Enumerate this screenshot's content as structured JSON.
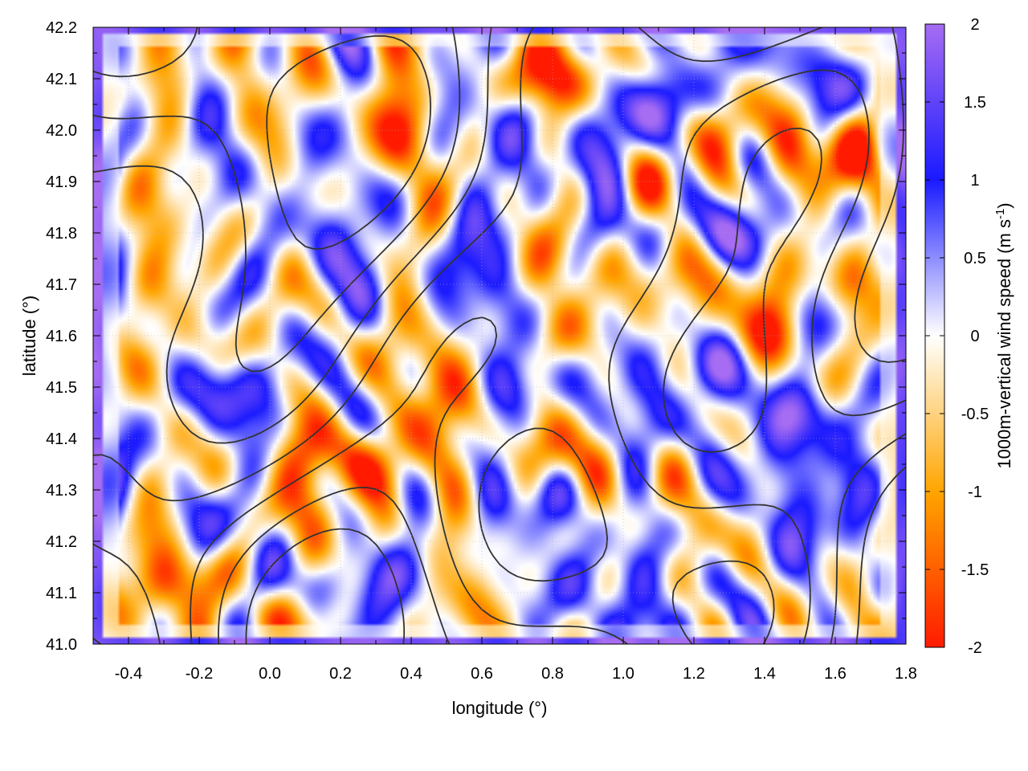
{
  "chart_data": {
    "type": "heatmap",
    "xlabel": "longitude (°)",
    "ylabel": "latitude (°)",
    "colorbar_label": "1000m-vertical wind speed (m s",
    "colorbar_label_sup": "-1",
    "colorbar_label_end": ")",
    "xlim": [
      -0.5,
      1.8
    ],
    "ylim": [
      41.0,
      42.2
    ],
    "x_ticks": [
      -0.4,
      -0.2,
      0.0,
      0.2,
      0.4,
      0.6,
      0.8,
      1.0,
      1.2,
      1.4,
      1.6,
      1.8
    ],
    "x_tick_labels": [
      "-0.4",
      "-0.2",
      "0.0",
      "0.2",
      "0.4",
      "0.6",
      "0.8",
      "1.0",
      "1.2",
      "1.4",
      "1.6",
      "1.8"
    ],
    "y_ticks": [
      41.0,
      41.1,
      41.2,
      41.3,
      41.4,
      41.5,
      41.6,
      41.7,
      41.8,
      41.9,
      42.0,
      42.1,
      42.2
    ],
    "y_tick_labels": [
      "41.0",
      "41.1",
      "41.2",
      "41.3",
      "41.4",
      "41.5",
      "41.6",
      "41.7",
      "41.8",
      "41.9",
      "42.0",
      "42.1",
      "42.2"
    ],
    "colorbar": {
      "range": [
        -2,
        2
      ],
      "ticks": [
        2,
        1.5,
        1,
        0.5,
        0,
        -0.5,
        -1,
        -1.5,
        -2
      ],
      "tick_labels": [
        "2",
        "1.5",
        "1",
        "0.5",
        "0",
        "-0.5",
        "-1",
        "-1.5",
        "-2"
      ],
      "stops": [
        {
          "value": 2,
          "color": "#a66cf2"
        },
        {
          "value": 1,
          "color": "#1a1aff"
        },
        {
          "value": 0,
          "color": "#ffffff"
        },
        {
          "value": -1,
          "color": "#ffa500"
        },
        {
          "value": -2,
          "color": "#ff1a00"
        }
      ]
    },
    "grid": true,
    "contour_color": "#333333",
    "hotspots": [
      {
        "x": 0.85,
        "y": 42.1,
        "v": -1.8
      },
      {
        "x": 0.75,
        "y": 42.1,
        "v": -1.6
      },
      {
        "x": 1.1,
        "y": 41.9,
        "v": -1.2
      },
      {
        "x": 1.3,
        "y": 42.0,
        "v": -1.0
      },
      {
        "x": 1.6,
        "y": 41.95,
        "v": -1.2
      },
      {
        "x": 1.65,
        "y": 41.7,
        "v": -1.3
      },
      {
        "x": 1.4,
        "y": 41.6,
        "v": -1.2
      },
      {
        "x": 1.35,
        "y": 41.72,
        "v": -1.5
      },
      {
        "x": 0.85,
        "y": 41.75,
        "v": -0.8
      },
      {
        "x": 0.9,
        "y": 41.6,
        "v": -0.6
      },
      {
        "x": -0.4,
        "y": 41.55,
        "v": -1.2
      },
      {
        "x": -0.1,
        "y": 41.58,
        "v": -1.0
      },
      {
        "x": 0.12,
        "y": 41.38,
        "v": -1.6
      },
      {
        "x": 0.3,
        "y": 41.34,
        "v": -1.2
      },
      {
        "x": -0.3,
        "y": 41.12,
        "v": -1.6
      },
      {
        "x": -0.4,
        "y": 41.2,
        "v": -1.0
      },
      {
        "x": 0.08,
        "y": 41.05,
        "v": -1.8
      },
      {
        "x": 0.85,
        "y": 41.35,
        "v": -1.5
      },
      {
        "x": 0.6,
        "y": 41.2,
        "v": -0.7
      },
      {
        "x": 1.1,
        "y": 42.05,
        "v": 1.8
      },
      {
        "x": 1.3,
        "y": 41.8,
        "v": 1.8
      },
      {
        "x": 1.25,
        "y": 41.55,
        "v": 1.6
      },
      {
        "x": 0.95,
        "y": 41.8,
        "v": 1.2
      },
      {
        "x": 0.6,
        "y": 41.7,
        "v": 0.6
      },
      {
        "x": -0.2,
        "y": 41.5,
        "v": 1.0
      },
      {
        "x": 0.0,
        "y": 41.75,
        "v": 0.4
      },
      {
        "x": -0.15,
        "y": 41.22,
        "v": 1.1
      },
      {
        "x": 0.15,
        "y": 41.1,
        "v": 1.7
      },
      {
        "x": 0.35,
        "y": 41.15,
        "v": 1.2
      },
      {
        "x": 0.75,
        "y": 41.3,
        "v": 1.2
      },
      {
        "x": 0.7,
        "y": 41.5,
        "v": 1.3
      },
      {
        "x": 1.5,
        "y": 41.45,
        "v": 1.4
      },
      {
        "x": 1.6,
        "y": 42.1,
        "v": 1.4
      },
      {
        "x": 1.4,
        "y": 41.2,
        "v": 0.2
      }
    ]
  }
}
